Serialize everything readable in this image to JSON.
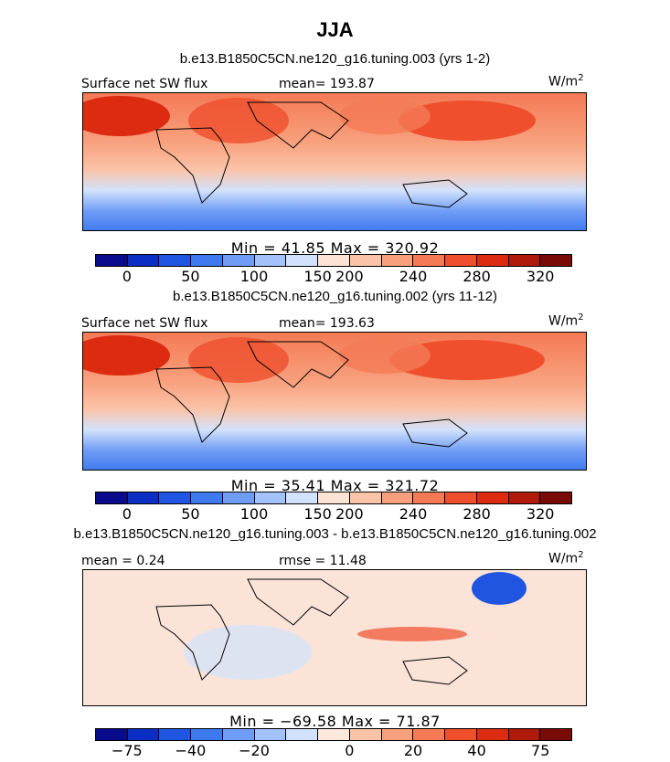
{
  "chart_data": {
    "type": "heatmap",
    "season": "JJA",
    "panels": [
      {
        "title": "b.e13.B1850C5CN.ne120_g16.tuning.003 (yrs 1-2)",
        "left_label": "Surface net SW flux",
        "center_label": "mean= 193.87",
        "units_base": "W/m",
        "units_exp": "2",
        "stats": "Min =  41.85 Max = 320.92",
        "colorbar_ticks": [
          "0",
          "50",
          "100",
          "150",
          "200",
          "240",
          "280",
          "320"
        ],
        "colors": [
          "#0a0a8c",
          "#0b2fc4",
          "#1f55e0",
          "#3f79f0",
          "#6f9cf5",
          "#a3c1fa",
          "#d2e2fc",
          "#fde3d6",
          "#fbc3a8",
          "#f8a07d",
          "#f47a55",
          "#ef4f2d",
          "#dd2b12",
          "#b01a0a",
          "#7a0a05"
        ]
      },
      {
        "title": "b.e13.B1850C5CN.ne120_g16.tuning.002 (yrs 11-12)",
        "left_label": "Surface net SW flux",
        "center_label": "mean= 193.63",
        "units_base": "W/m",
        "units_exp": "2",
        "stats": "Min =  35.41 Max = 321.72",
        "colorbar_ticks": [
          "0",
          "50",
          "100",
          "150",
          "200",
          "240",
          "280",
          "320"
        ],
        "colors": [
          "#0a0a8c",
          "#0b2fc4",
          "#1f55e0",
          "#3f79f0",
          "#6f9cf5",
          "#a3c1fa",
          "#d2e2fc",
          "#fde3d6",
          "#fbc3a8",
          "#f8a07d",
          "#f47a55",
          "#ef4f2d",
          "#dd2b12",
          "#b01a0a",
          "#7a0a05"
        ]
      },
      {
        "title": "b.e13.B1850C5CN.ne120_g16.tuning.003 - b.e13.B1850C5CN.ne120_g16.tuning.002",
        "left_label": "mean =   0.24",
        "center_label": "rmse =  11.48",
        "units_base": "W/m",
        "units_exp": "2",
        "stats": "Min = −69.58 Max =  71.87",
        "colorbar_ticks": [
          "−75",
          "−40",
          "−20",
          "0",
          "20",
          "40",
          "75"
        ],
        "colors": [
          "#0a0a8c",
          "#0b2fc4",
          "#1f55e0",
          "#3f79f0",
          "#6f9cf5",
          "#a3c1fa",
          "#d2e2fc",
          "#fde8de",
          "#fbc3a8",
          "#f8a07d",
          "#f47a55",
          "#ef4f2d",
          "#dd2b12",
          "#b01a0a",
          "#7a0a05"
        ]
      }
    ]
  }
}
